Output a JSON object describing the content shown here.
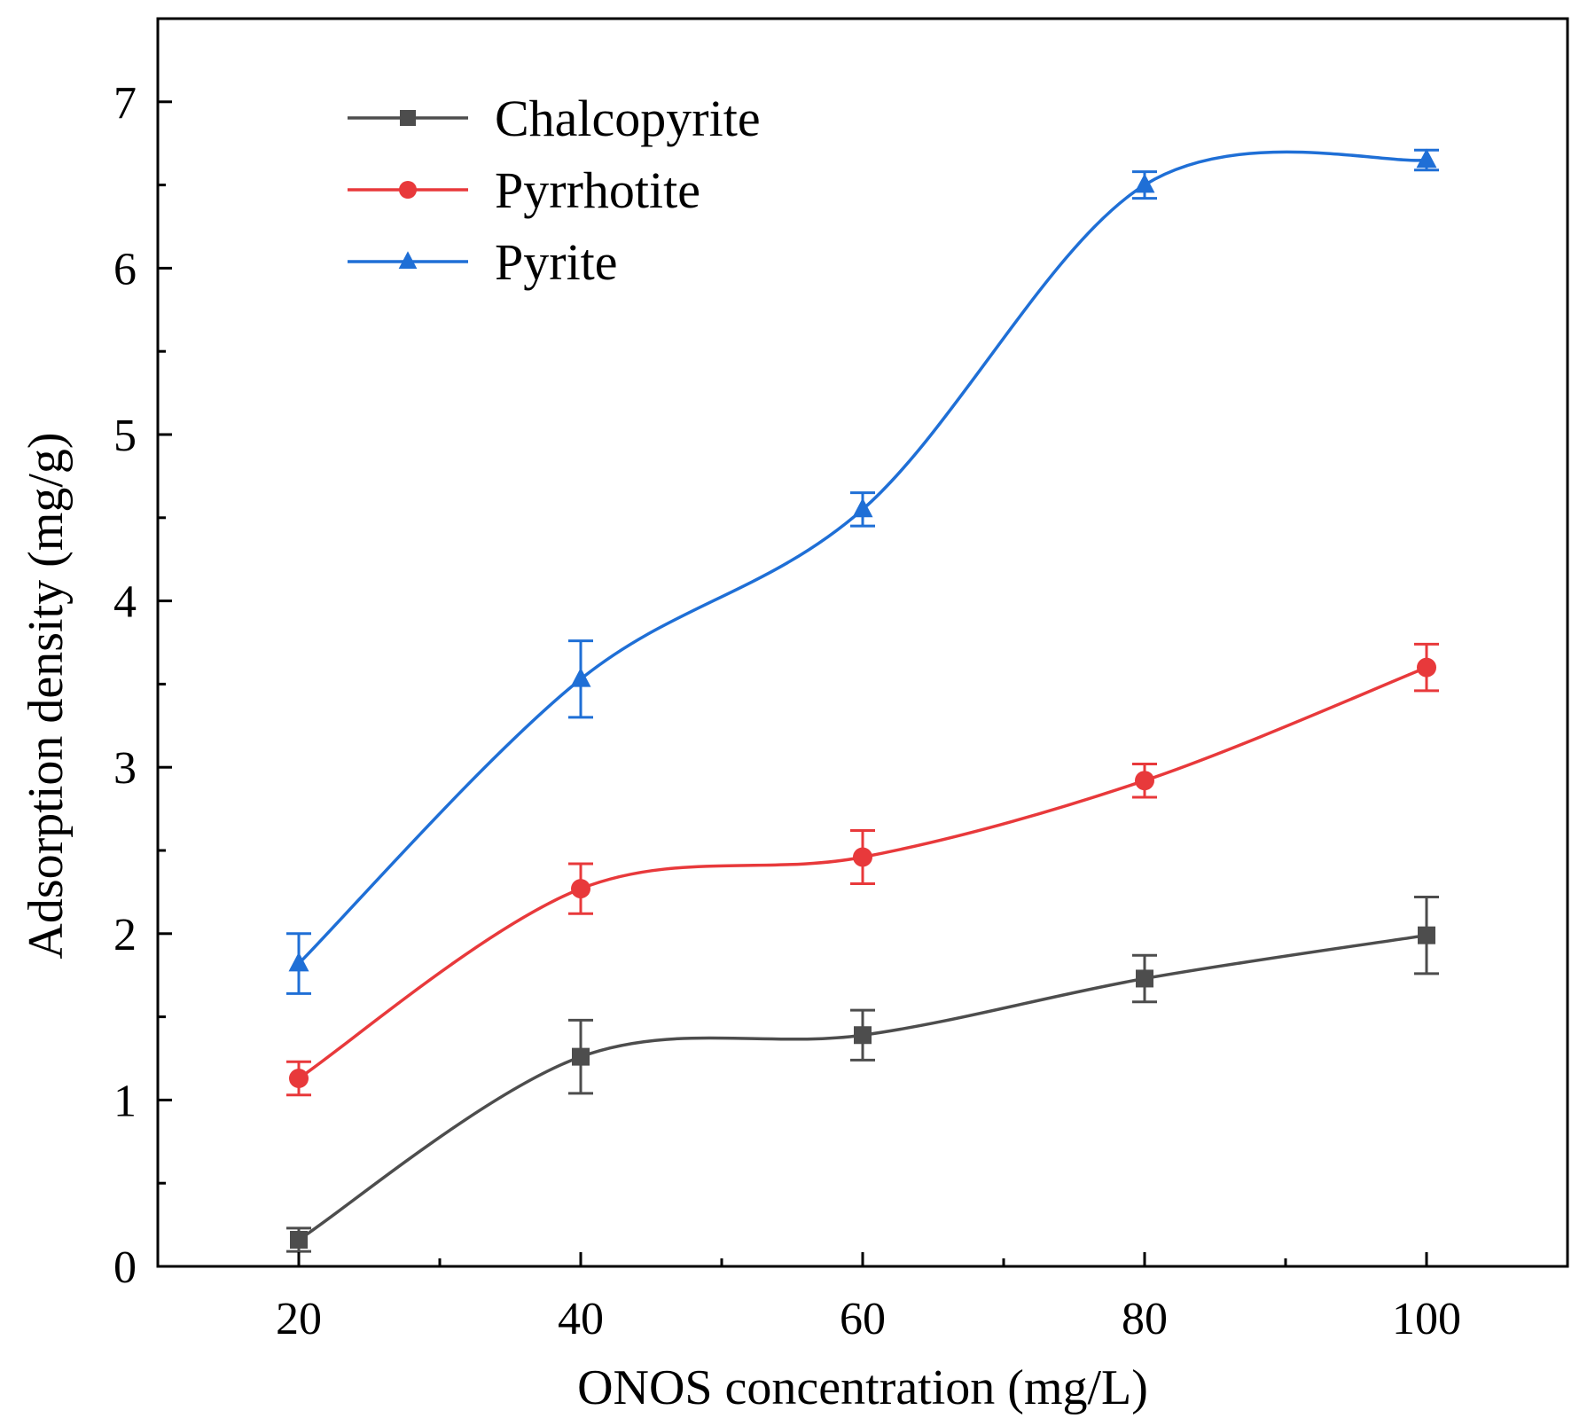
{
  "chart_data": {
    "type": "line",
    "title": "",
    "xlabel": "ONOS concentration (mg/L)",
    "ylabel": "Adsorption density (mg/g)",
    "xlim": [
      10,
      110
    ],
    "ylim": [
      0,
      7.5
    ],
    "x_ticks": [
      20,
      40,
      60,
      80,
      100
    ],
    "x_tick_labels": [
      "20",
      "40",
      "60",
      "80",
      "100"
    ],
    "y_ticks": [
      0,
      1,
      2,
      3,
      4,
      5,
      6,
      7
    ],
    "y_tick_labels": [
      "0",
      "1",
      "2",
      "3",
      "4",
      "5",
      "6",
      "7"
    ],
    "grid": false,
    "legend_position": "top-left",
    "x": [
      20,
      40,
      60,
      80,
      100
    ],
    "series": [
      {
        "name": "Chalcopyrite",
        "color": "#4d4d4d",
        "marker": "square",
        "values": [
          0.16,
          1.26,
          1.39,
          1.73,
          1.99
        ],
        "errors": [
          0.07,
          0.22,
          0.15,
          0.14,
          0.23
        ]
      },
      {
        "name": "Pyrrhotite",
        "color": "#e8393b",
        "marker": "circle",
        "values": [
          1.13,
          2.27,
          2.46,
          2.92,
          3.6
        ],
        "errors": [
          0.1,
          0.15,
          0.16,
          0.1,
          0.14
        ]
      },
      {
        "name": "Pyrite",
        "color": "#1f6fd6",
        "marker": "triangle",
        "values": [
          1.82,
          3.53,
          4.55,
          6.5,
          6.65
        ],
        "errors": [
          0.18,
          0.23,
          0.1,
          0.08,
          0.06
        ]
      }
    ]
  }
}
